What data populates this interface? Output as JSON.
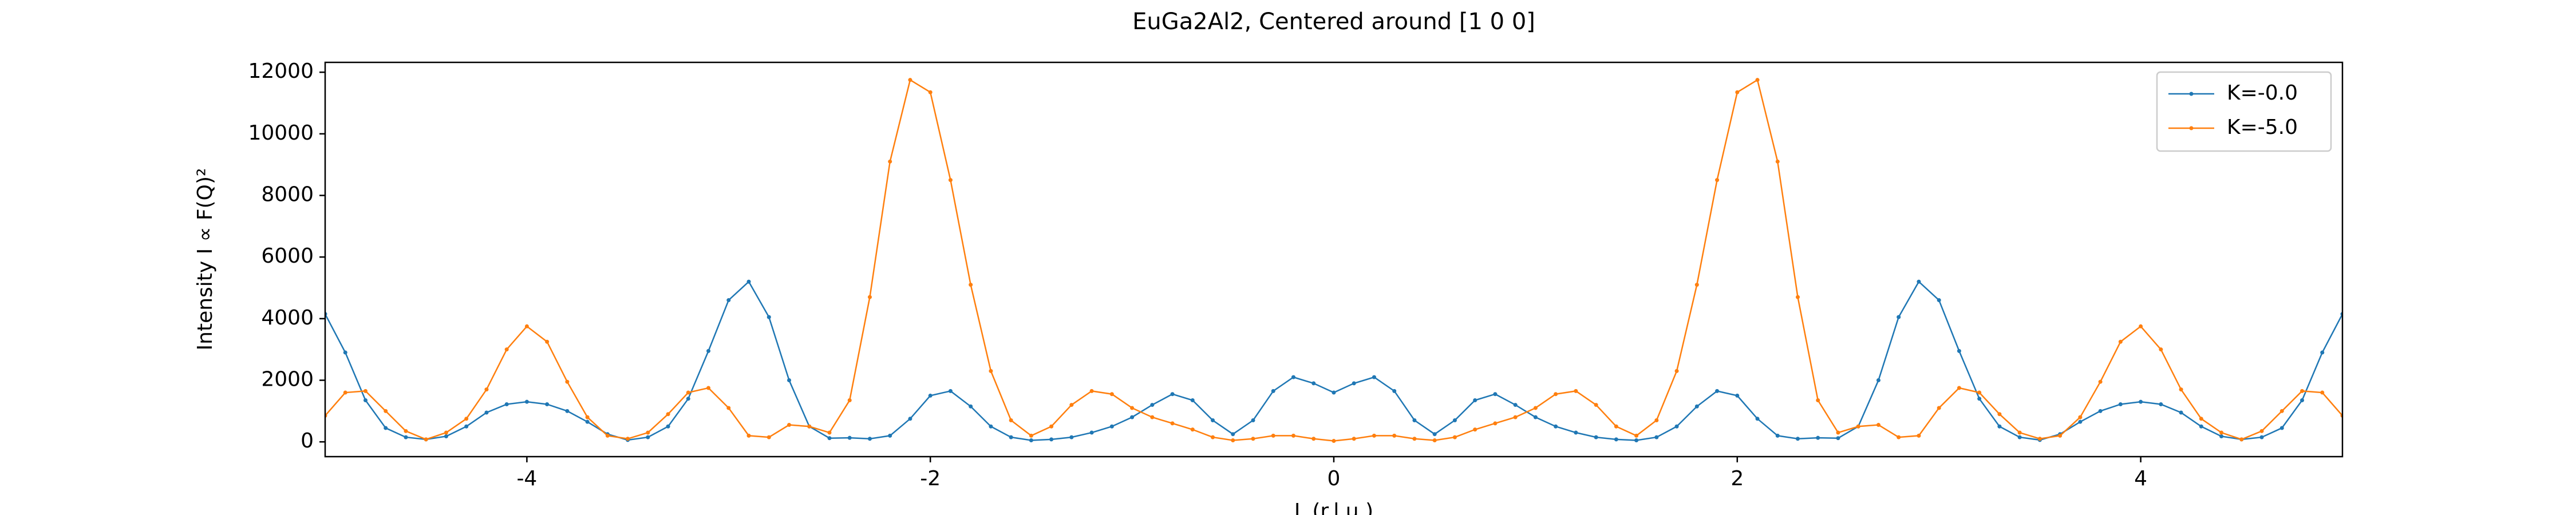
{
  "chart_data": {
    "type": "line",
    "title": "EuGa2Al2, Centered around [1 0 0]",
    "x_label": "L (r.l.u.)",
    "y_label": "Intensity I ∝ F(Q)²",
    "x": [
      -5.0,
      -4.9,
      -4.8,
      -4.7,
      -4.6,
      -4.5,
      -4.4,
      -4.3,
      -4.2,
      -4.1,
      -4.0,
      -3.9,
      -3.8,
      -3.7,
      -3.6,
      -3.5,
      -3.4,
      -3.3,
      -3.2,
      -3.1,
      -3.0,
      -2.9,
      -2.8,
      -2.7,
      -2.6,
      -2.5,
      -2.4,
      -2.3,
      -2.2,
      -2.1,
      -2.0,
      -1.9,
      -1.8,
      -1.7,
      -1.6,
      -1.5,
      -1.4,
      -1.3,
      -1.2,
      -1.1,
      -1.0,
      -0.9,
      -0.8,
      -0.7,
      -0.6,
      -0.5,
      -0.4,
      -0.3,
      -0.2,
      -0.1,
      0.0,
      0.1,
      0.2,
      0.3,
      0.4,
      0.5,
      0.6,
      0.7,
      0.8,
      0.9,
      1.0,
      1.1,
      1.2,
      1.3,
      1.4,
      1.5,
      1.6,
      1.7,
      1.8,
      1.9,
      2.0,
      2.1,
      2.2,
      2.3,
      2.4,
      2.5,
      2.6,
      2.7,
      2.8,
      2.9,
      3.0,
      3.1,
      3.2,
      3.3,
      3.4,
      3.5,
      3.6,
      3.7,
      3.8,
      3.9,
      4.0,
      4.1,
      4.2,
      4.3,
      4.4,
      4.5,
      4.6,
      4.7,
      4.8,
      4.9,
      5.0
    ],
    "series": [
      {
        "name": "K=-0.0",
        "color": "#1f77b4",
        "values": [
          4150,
          2900,
          1350,
          450,
          150,
          80,
          180,
          500,
          950,
          1220,
          1300,
          1220,
          1000,
          650,
          250,
          60,
          150,
          500,
          1400,
          2950,
          4600,
          5200,
          4050,
          2000,
          500,
          120,
          130,
          100,
          200,
          750,
          1500,
          1650,
          1150,
          500,
          150,
          50,
          80,
          150,
          300,
          500,
          800,
          1200,
          1550,
          1350,
          700,
          250,
          700,
          1650,
          2100,
          1900,
          1600,
          1900,
          2100,
          1650,
          700,
          250,
          700,
          1350,
          1550,
          1200,
          800,
          500,
          300,
          150,
          80,
          50,
          150,
          500,
          1150,
          1650,
          1500,
          750,
          200,
          100,
          130,
          120,
          500,
          2000,
          4050,
          5200,
          4600,
          2950,
          1400,
          500,
          150,
          60,
          250,
          650,
          1000,
          1220,
          1300,
          1220,
          950,
          500,
          180,
          80,
          150,
          450,
          1350,
          2900,
          4150
        ]
      },
      {
        "name": "K=-5.0",
        "color": "#ff7f0e",
        "values": [
          850,
          1600,
          1650,
          1000,
          350,
          80,
          300,
          750,
          1700,
          3000,
          3750,
          3250,
          1950,
          800,
          200,
          100,
          300,
          900,
          1600,
          1750,
          1100,
          200,
          150,
          550,
          500,
          300,
          1350,
          4700,
          9100,
          11750,
          11350,
          8500,
          5100,
          2300,
          700,
          200,
          500,
          1200,
          1650,
          1550,
          1100,
          800,
          600,
          400,
          150,
          50,
          100,
          200,
          200,
          100,
          30,
          100,
          200,
          200,
          100,
          50,
          150,
          400,
          600,
          800,
          1100,
          1550,
          1650,
          1200,
          500,
          200,
          700,
          2300,
          5100,
          8500,
          11350,
          11750,
          9100,
          4700,
          1350,
          300,
          500,
          550,
          150,
          200,
          1100,
          1750,
          1600,
          900,
          300,
          100,
          200,
          800,
          1950,
          3250,
          3750,
          3000,
          1700,
          750,
          300,
          80,
          350,
          1000,
          1650,
          1600,
          850
        ]
      }
    ],
    "xlim": [
      -5,
      5
    ],
    "xticks": [
      -4,
      -2,
      0,
      2,
      4
    ],
    "ylim": [
      -480,
      12320
    ],
    "yticks": [
      0,
      2000,
      4000,
      6000,
      8000,
      10000,
      12000
    ],
    "legend": "upper right",
    "grid": false
  }
}
